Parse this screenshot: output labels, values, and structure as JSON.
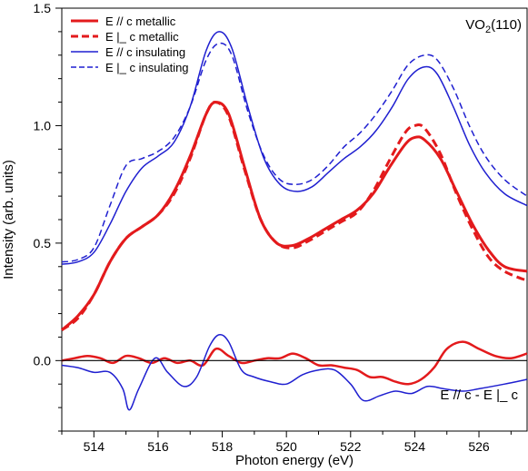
{
  "chart_data": {
    "type": "line",
    "xlabel": "Photon energy (eV)",
    "ylabel": "Intensity (arb. units)",
    "xlim": [
      513.0,
      527.5
    ],
    "ylim": [
      -0.3,
      1.5
    ],
    "x_ticks": [
      514,
      516,
      518,
      520,
      522,
      524,
      526
    ],
    "y_ticks": [
      0.0,
      0.5,
      1.0,
      1.5
    ],
    "grid": false,
    "legend_position": "top-left",
    "annotations": {
      "sample": "VO",
      "sample_sub": "2",
      "sample_suffix": "(110)",
      "difference_label": "E // c - E |_ c"
    },
    "zero_line": 0.0,
    "series": [
      {
        "name": "E // c metallic",
        "color": "#e31a1c",
        "dash": "solid",
        "width": 3,
        "points": [
          [
            513.0,
            0.13
          ],
          [
            513.5,
            0.19
          ],
          [
            514.0,
            0.28
          ],
          [
            514.5,
            0.42
          ],
          [
            515.0,
            0.52
          ],
          [
            515.5,
            0.57
          ],
          [
            516.0,
            0.62
          ],
          [
            516.5,
            0.72
          ],
          [
            517.0,
            0.87
          ],
          [
            517.5,
            1.05
          ],
          [
            517.8,
            1.1
          ],
          [
            518.2,
            1.05
          ],
          [
            518.7,
            0.82
          ],
          [
            519.2,
            0.6
          ],
          [
            519.7,
            0.5
          ],
          [
            520.2,
            0.49
          ],
          [
            520.7,
            0.52
          ],
          [
            521.2,
            0.56
          ],
          [
            521.7,
            0.6
          ],
          [
            522.2,
            0.64
          ],
          [
            522.7,
            0.71
          ],
          [
            523.2,
            0.82
          ],
          [
            523.7,
            0.92
          ],
          [
            524.0,
            0.95
          ],
          [
            524.3,
            0.94
          ],
          [
            524.8,
            0.86
          ],
          [
            525.3,
            0.72
          ],
          [
            525.8,
            0.58
          ],
          [
            526.3,
            0.47
          ],
          [
            526.8,
            0.4
          ],
          [
            527.5,
            0.38
          ]
        ]
      },
      {
        "name": "E |_ c metallic",
        "color": "#e31a1c",
        "dash": "dashed",
        "width": 3,
        "points": [
          [
            513.0,
            0.13
          ],
          [
            513.5,
            0.18
          ],
          [
            514.0,
            0.28
          ],
          [
            514.5,
            0.42
          ],
          [
            515.0,
            0.52
          ],
          [
            515.5,
            0.57
          ],
          [
            516.0,
            0.62
          ],
          [
            516.5,
            0.71
          ],
          [
            517.0,
            0.86
          ],
          [
            517.5,
            1.05
          ],
          [
            517.8,
            1.1
          ],
          [
            518.2,
            1.04
          ],
          [
            518.7,
            0.81
          ],
          [
            519.2,
            0.6
          ],
          [
            519.7,
            0.5
          ],
          [
            520.2,
            0.48
          ],
          [
            520.7,
            0.51
          ],
          [
            521.2,
            0.55
          ],
          [
            521.7,
            0.59
          ],
          [
            522.2,
            0.63
          ],
          [
            522.7,
            0.72
          ],
          [
            523.2,
            0.85
          ],
          [
            523.7,
            0.97
          ],
          [
            524.0,
            1.0
          ],
          [
            524.3,
            0.99
          ],
          [
            524.8,
            0.88
          ],
          [
            525.3,
            0.71
          ],
          [
            525.8,
            0.56
          ],
          [
            526.3,
            0.44
          ],
          [
            526.8,
            0.38
          ],
          [
            527.5,
            0.34
          ]
        ]
      },
      {
        "name": "E // c insulating",
        "color": "#1f1fd0",
        "dash": "solid",
        "width": 1.5,
        "points": [
          [
            513.0,
            0.41
          ],
          [
            513.5,
            0.42
          ],
          [
            514.0,
            0.46
          ],
          [
            514.5,
            0.58
          ],
          [
            515.0,
            0.72
          ],
          [
            515.5,
            0.82
          ],
          [
            516.0,
            0.87
          ],
          [
            516.5,
            0.93
          ],
          [
            517.0,
            1.08
          ],
          [
            517.5,
            1.32
          ],
          [
            517.9,
            1.4
          ],
          [
            518.3,
            1.33
          ],
          [
            518.8,
            1.08
          ],
          [
            519.3,
            0.86
          ],
          [
            519.8,
            0.75
          ],
          [
            520.3,
            0.72
          ],
          [
            520.8,
            0.74
          ],
          [
            521.3,
            0.8
          ],
          [
            521.8,
            0.86
          ],
          [
            522.3,
            0.91
          ],
          [
            522.8,
            0.98
          ],
          [
            523.3,
            1.08
          ],
          [
            523.8,
            1.2
          ],
          [
            524.3,
            1.25
          ],
          [
            524.7,
            1.22
          ],
          [
            525.2,
            1.08
          ],
          [
            525.7,
            0.92
          ],
          [
            526.2,
            0.8
          ],
          [
            526.8,
            0.71
          ],
          [
            527.5,
            0.66
          ]
        ]
      },
      {
        "name": "E |_ c insulating",
        "color": "#1f1fd0",
        "dash": "dashed",
        "width": 1.5,
        "points": [
          [
            513.0,
            0.42
          ],
          [
            513.5,
            0.43
          ],
          [
            514.0,
            0.48
          ],
          [
            514.5,
            0.66
          ],
          [
            515.0,
            0.83
          ],
          [
            515.5,
            0.86
          ],
          [
            516.0,
            0.89
          ],
          [
            516.5,
            0.95
          ],
          [
            517.0,
            1.08
          ],
          [
            517.5,
            1.28
          ],
          [
            517.9,
            1.35
          ],
          [
            518.3,
            1.3
          ],
          [
            518.8,
            1.06
          ],
          [
            519.3,
            0.87
          ],
          [
            519.8,
            0.77
          ],
          [
            520.3,
            0.75
          ],
          [
            520.8,
            0.77
          ],
          [
            521.3,
            0.83
          ],
          [
            521.8,
            0.91
          ],
          [
            522.3,
            0.97
          ],
          [
            522.8,
            1.05
          ],
          [
            523.3,
            1.15
          ],
          [
            523.8,
            1.26
          ],
          [
            524.3,
            1.3
          ],
          [
            524.7,
            1.28
          ],
          [
            525.2,
            1.16
          ],
          [
            525.7,
            1.0
          ],
          [
            526.2,
            0.87
          ],
          [
            526.8,
            0.77
          ],
          [
            527.5,
            0.7
          ]
        ]
      },
      {
        "name": "",
        "color": "#e31a1c",
        "dash": "solid",
        "width": 2.5,
        "points": [
          [
            513.0,
            0.0
          ],
          [
            513.4,
            0.01
          ],
          [
            513.8,
            0.02
          ],
          [
            514.2,
            0.01
          ],
          [
            514.6,
            -0.01
          ],
          [
            515.0,
            0.02
          ],
          [
            515.4,
            0.01
          ],
          [
            515.8,
            -0.01
          ],
          [
            516.2,
            0.01
          ],
          [
            516.6,
            -0.01
          ],
          [
            517.0,
            0.0
          ],
          [
            517.4,
            -0.02
          ],
          [
            517.8,
            0.05
          ],
          [
            518.2,
            0.02
          ],
          [
            518.6,
            -0.01
          ],
          [
            519.0,
            0.0
          ],
          [
            519.4,
            0.01
          ],
          [
            519.8,
            0.01
          ],
          [
            520.2,
            0.03
          ],
          [
            520.6,
            0.01
          ],
          [
            521.0,
            -0.02
          ],
          [
            521.4,
            -0.02
          ],
          [
            521.8,
            -0.03
          ],
          [
            522.2,
            -0.04
          ],
          [
            522.6,
            -0.07
          ],
          [
            523.0,
            -0.07
          ],
          [
            523.4,
            -0.09
          ],
          [
            523.8,
            -0.1
          ],
          [
            524.2,
            -0.08
          ],
          [
            524.6,
            -0.03
          ],
          [
            525.0,
            0.05
          ],
          [
            525.5,
            0.08
          ],
          [
            526.0,
            0.05
          ],
          [
            526.5,
            0.02
          ],
          [
            527.0,
            0.01
          ],
          [
            527.5,
            0.03
          ]
        ]
      },
      {
        "name": "",
        "color": "#1f1fd0",
        "dash": "solid",
        "width": 1.5,
        "points": [
          [
            513.0,
            -0.02
          ],
          [
            513.5,
            -0.03
          ],
          [
            514.0,
            -0.05
          ],
          [
            514.5,
            -0.05
          ],
          [
            514.9,
            -0.12
          ],
          [
            515.1,
            -0.21
          ],
          [
            515.4,
            -0.12
          ],
          [
            515.9,
            0.01
          ],
          [
            516.3,
            -0.05
          ],
          [
            516.8,
            -0.11
          ],
          [
            517.2,
            -0.07
          ],
          [
            517.6,
            0.06
          ],
          [
            517.9,
            0.11
          ],
          [
            518.2,
            0.08
          ],
          [
            518.6,
            -0.04
          ],
          [
            519.0,
            -0.07
          ],
          [
            519.5,
            -0.09
          ],
          [
            520.0,
            -0.1
          ],
          [
            520.5,
            -0.06
          ],
          [
            521.0,
            -0.04
          ],
          [
            521.5,
            -0.04
          ],
          [
            522.0,
            -0.1
          ],
          [
            522.4,
            -0.17
          ],
          [
            522.9,
            -0.15
          ],
          [
            523.4,
            -0.13
          ],
          [
            523.9,
            -0.14
          ],
          [
            524.4,
            -0.11
          ],
          [
            524.9,
            -0.12
          ],
          [
            525.5,
            -0.13
          ],
          [
            526.0,
            -0.12
          ],
          [
            526.8,
            -0.1
          ],
          [
            527.5,
            -0.08
          ]
        ]
      }
    ]
  }
}
